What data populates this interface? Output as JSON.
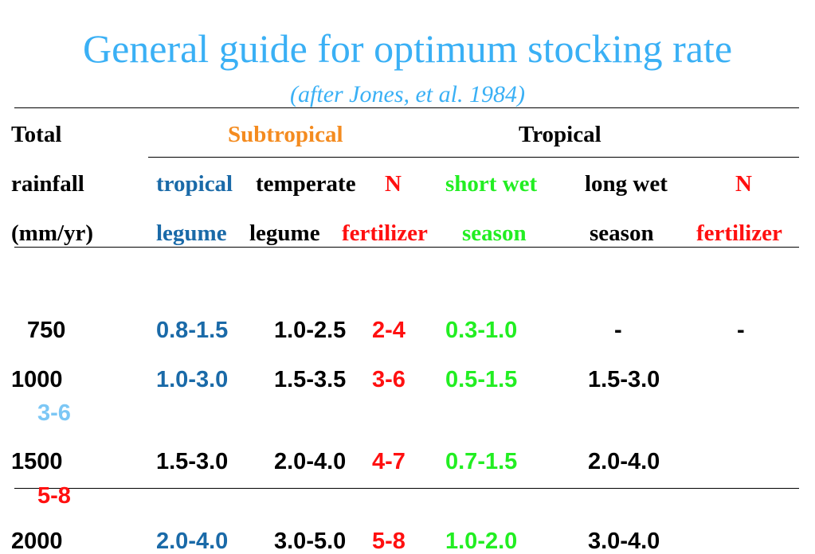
{
  "title": "General guide for optimum stocking rate",
  "subtitle": "(after Jones, et al. 1984)",
  "colors": {
    "title": "#3ab0f5",
    "tropical_legume": "#1a6aa8",
    "n_fertilizer": "#ff1010",
    "short_wet_season": "#22ee22",
    "subtropical": "#f48b1f",
    "spillover": "#7cc7f5"
  },
  "header": {
    "rainfall": [
      "Total",
      "rainfall",
      "(mm/yr)"
    ],
    "group_subtropical": "Subtropical",
    "group_tropical": "Tropical",
    "tropical_legume": [
      "tropical",
      "legume"
    ],
    "temperate_legume": [
      "temperate",
      "legume"
    ],
    "sub_n_fertilizer": [
      "N",
      "fertilizer"
    ],
    "short_wet_season": [
      "short wet",
      "season"
    ],
    "long_wet_season": [
      "long wet",
      "season"
    ],
    "trop_n_fertilizer": [
      "N",
      "fertilizer"
    ]
  },
  "rows": [
    {
      "rainfall": "750",
      "tropical_legume": "0.8-1.5",
      "temperate_legume": "1.0-2.5",
      "sub_n_fertilizer": "2-4",
      "short_wet_season": "0.3-1.0",
      "long_wet_season": "-",
      "trop_n_fertilizer": "-"
    },
    {
      "rainfall": "1000",
      "tropical_legume": "1.0-3.0",
      "temperate_legume": "1.5-3.5",
      "sub_n_fertilizer": "3-6",
      "short_wet_season": "0.5-1.5",
      "long_wet_season": "1.5-3.0",
      "trop_n_fertilizer": "3-6"
    },
    {
      "rainfall": "1500",
      "tropical_legume": "1.5-3.0",
      "temperate_legume": "2.0-4.0",
      "sub_n_fertilizer": "4-7",
      "short_wet_season": "0.7-1.5",
      "long_wet_season": "2.0-4.0",
      "trop_n_fertilizer": "5-8"
    },
    {
      "rainfall": "2000",
      "tropical_legume": "2.0-4.0",
      "temperate_legume": "3.0-5.0",
      "sub_n_fertilizer": "5-8",
      "short_wet_season": "1.0-2.0",
      "long_wet_season": "3.0-4.0",
      "trop_n_fertilizer": ""
    }
  ]
}
